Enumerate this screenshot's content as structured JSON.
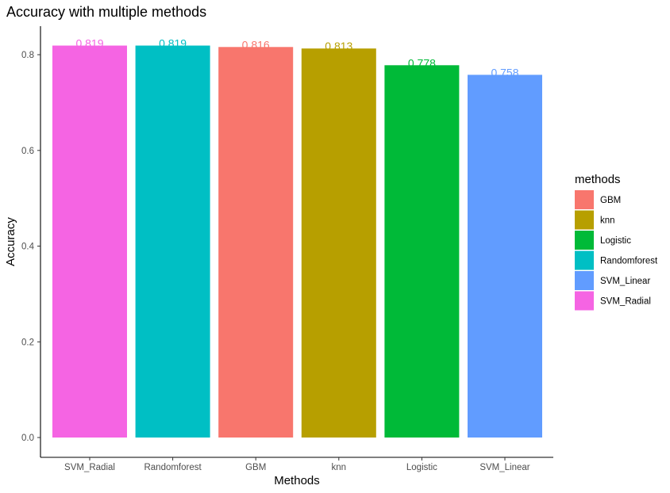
{
  "chart_data": {
    "type": "bar",
    "title": "Accuracy with multiple methods",
    "xlabel": "Methods",
    "ylabel": "Accuracy",
    "ylim": [
      0,
      0.85
    ],
    "yticks": [
      "0.0",
      "0.2",
      "0.4",
      "0.6",
      "0.8"
    ],
    "grid": false,
    "legend_position": "right",
    "categories": [
      "SVM_Radial",
      "Randomforest",
      "GBM",
      "knn",
      "Logistic",
      "SVM_Linear"
    ],
    "values": [
      0.819,
      0.819,
      0.816,
      0.813,
      0.778,
      0.758
    ],
    "value_labels": [
      "0.819",
      "0.819",
      "0.816",
      "0.813",
      "0.778",
      "0.758"
    ],
    "bar_colors": [
      "#F564E3",
      "#00BFC4",
      "#F8766D",
      "#B79F00",
      "#00BA38",
      "#619CFF"
    ],
    "legend": {
      "title": "methods",
      "items": [
        {
          "label": "GBM",
          "color": "#F8766D"
        },
        {
          "label": "knn",
          "color": "#B79F00"
        },
        {
          "label": "Logistic",
          "color": "#00BA38"
        },
        {
          "label": "Randomforest",
          "color": "#00BFC4"
        },
        {
          "label": "SVM_Linear",
          "color": "#619CFF"
        },
        {
          "label": "SVM_Radial",
          "color": "#F564E3"
        }
      ]
    }
  }
}
